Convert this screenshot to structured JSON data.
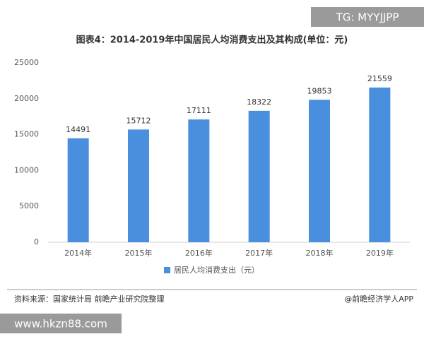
{
  "chart_data": {
    "type": "bar",
    "title": "图表4：2014-2019年中国居民人均消费支出及其构成(单位：元)",
    "categories": [
      "2014年",
      "2015年",
      "2016年",
      "2017年",
      "2018年",
      "2019年"
    ],
    "series": [
      {
        "name": "居民人均消费支出（元）",
        "color": "#4a8fde",
        "values": [
          14491,
          15712,
          17111,
          18322,
          19853,
          21559
        ]
      }
    ],
    "ylim": [
      0,
      25000
    ],
    "yticks": [
      0,
      5000,
      10000,
      15000,
      20000,
      25000
    ],
    "grid": false,
    "legend": "bottom"
  },
  "source": "资料来源：国家统计局 前瞻产业研究院整理",
  "credit": "@前瞻经济学人APP",
  "tag": "TG: MYYJJPP",
  "site": "www.hkzn88.com"
}
